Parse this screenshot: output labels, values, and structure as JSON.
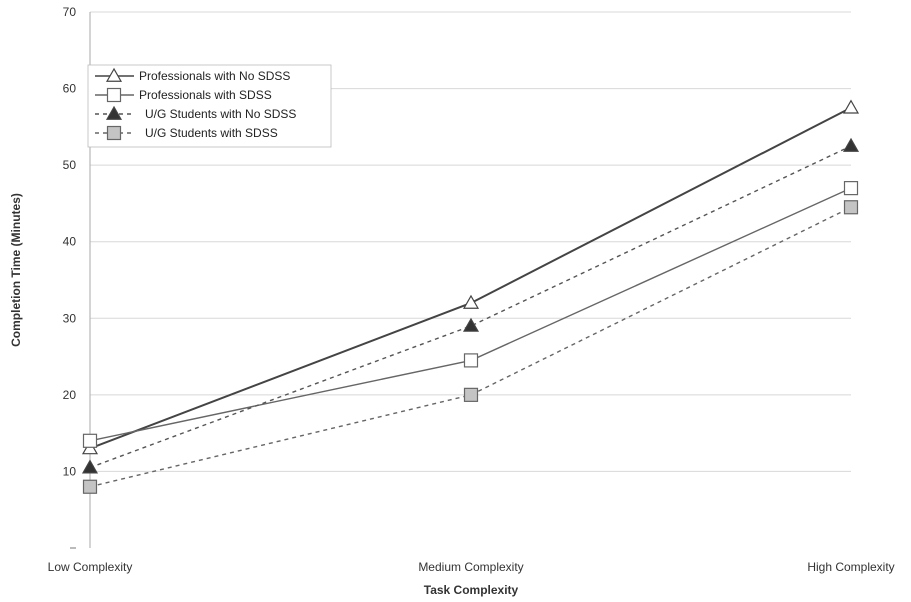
{
  "chart_data": {
    "type": "line",
    "title": "",
    "xlabel": "Task Complexity",
    "ylabel": "Completion Time (Minutes)",
    "categories": [
      "Low Complexity",
      "Medium Complexity",
      "High Complexity"
    ],
    "ylim": [
      0,
      70
    ],
    "yticks": [
      "",
      "10",
      "20",
      "30",
      "40",
      "50",
      "60",
      "70"
    ],
    "grid": true,
    "legend_position": "top-left",
    "series": [
      {
        "name": "Professionals with No SDSS",
        "values": [
          13,
          32,
          57.5
        ],
        "marker": "triangle-open",
        "line": "solid",
        "color": "#444444"
      },
      {
        "name": "Professionals with SDSS",
        "values": [
          14,
          24.5,
          47
        ],
        "marker": "square-open",
        "line": "solid",
        "color": "#666666"
      },
      {
        "name": "U/G Students with No SDSS",
        "values": [
          10.5,
          29,
          52.5
        ],
        "marker": "triangle-filled",
        "line": "dashed",
        "color": "#555555"
      },
      {
        "name": "U/G Students with SDSS",
        "values": [
          8,
          20,
          44.5
        ],
        "marker": "square-filled",
        "line": "dashed",
        "color": "#666666"
      }
    ]
  }
}
